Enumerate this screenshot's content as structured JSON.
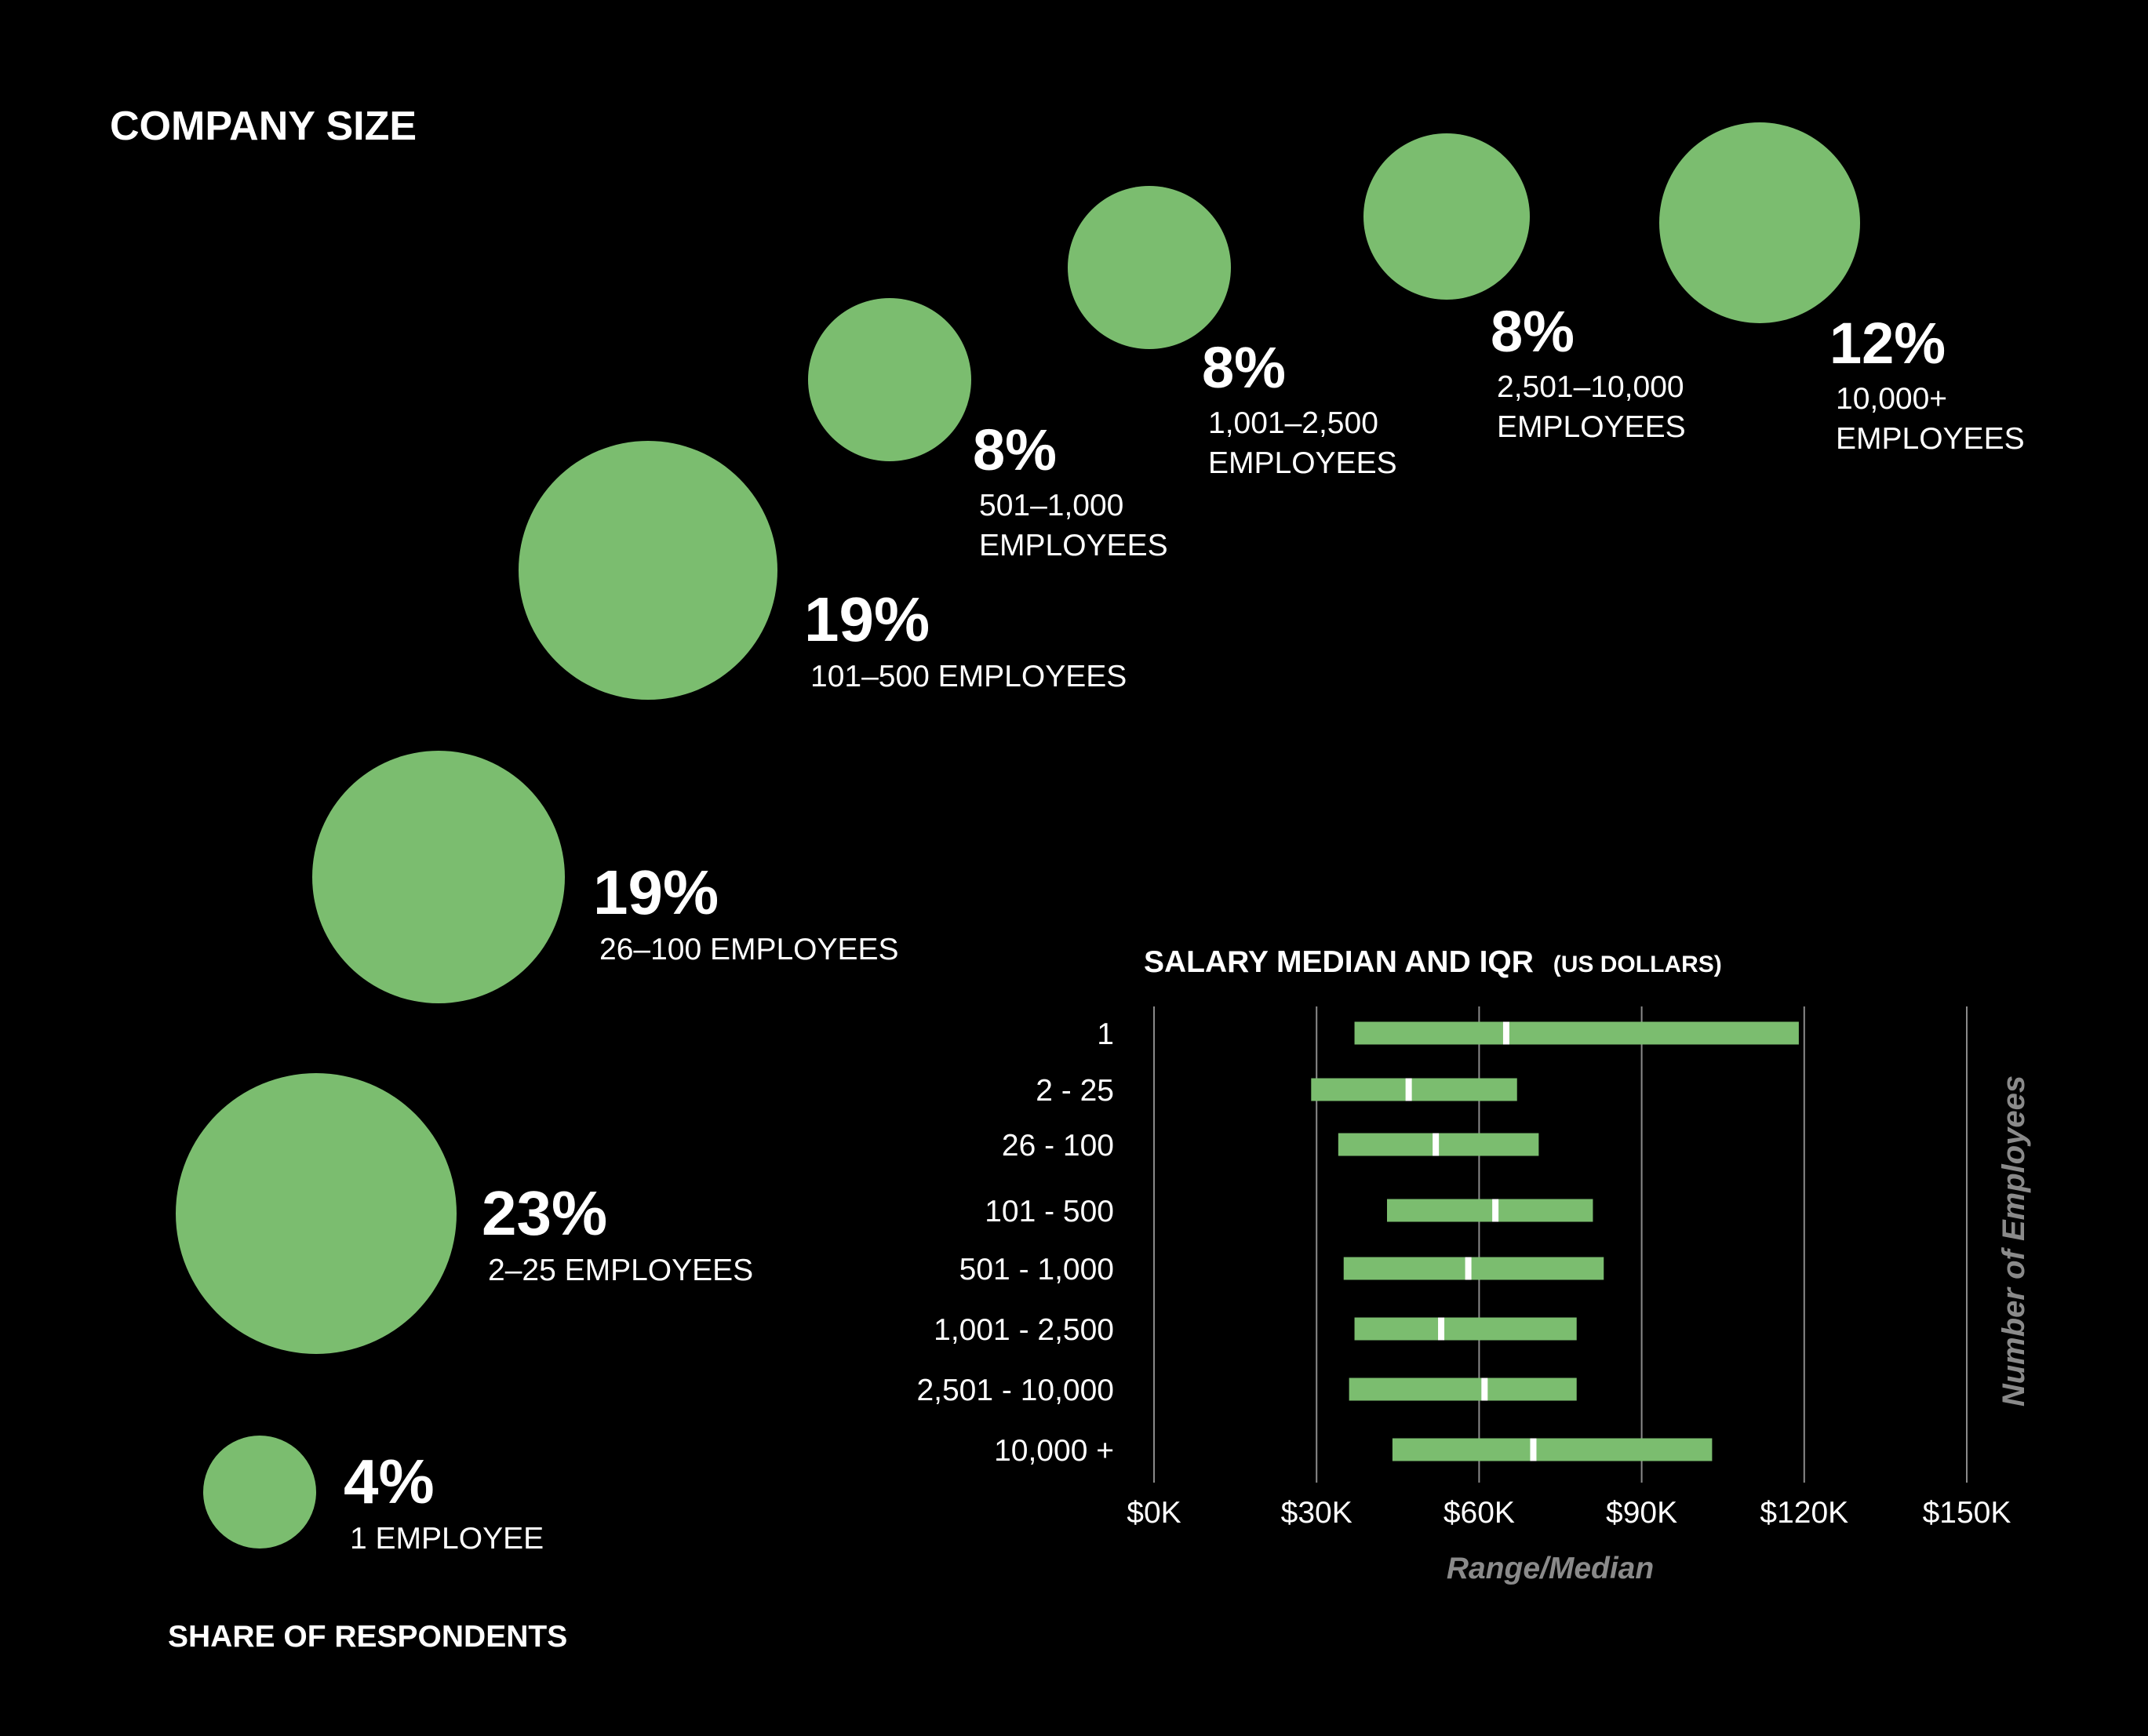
{
  "colors": {
    "background": "#000000",
    "accent": "#7bbd6f",
    "text": "#ffffff",
    "grid": "#8a8a8a",
    "axis_title": "#8a8a8a",
    "median_marker": "#ffffff"
  },
  "chart_data": [
    {
      "type": "bubble",
      "title": "COMPANY SIZE",
      "footer": "SHARE OF RESPONDENTS",
      "items": [
        {
          "label": [
            "1 EMPLOYEE"
          ],
          "pct_label": "4%",
          "value": 4
        },
        {
          "label": [
            "2–25 EMPLOYEES"
          ],
          "pct_label": "23%",
          "value": 23
        },
        {
          "label": [
            "26–100 EMPLOYEES"
          ],
          "pct_label": "19%",
          "value": 19
        },
        {
          "label": [
            "101–500 EMPLOYEES"
          ],
          "pct_label": "19%",
          "value": 19
        },
        {
          "label": [
            "501–1,000",
            "EMPLOYEES"
          ],
          "pct_label": "8%",
          "value": 8
        },
        {
          "label": [
            "1,001–2,500",
            "EMPLOYEES"
          ],
          "pct_label": "8%",
          "value": 8
        },
        {
          "label": [
            "2,501–10,000",
            "EMPLOYEES"
          ],
          "pct_label": "8%",
          "value": 8
        },
        {
          "label": [
            "10,000+",
            "EMPLOYEES"
          ],
          "pct_label": "12%",
          "value": 12
        }
      ]
    },
    {
      "type": "range-bar",
      "title": "SALARY MEDIAN AND IQR",
      "title_suffix": "(US DOLLARS)",
      "xlabel": "Range/Median",
      "ylabel": "Number of Employees",
      "xlim": [
        0,
        150
      ],
      "x_unit": "thousands USD",
      "xticks": [
        0,
        30,
        60,
        90,
        120,
        150
      ],
      "xtick_labels": [
        "$0K",
        "$30K",
        "$60K",
        "$90K",
        "$120K",
        "$150K"
      ],
      "grid": true,
      "categories": [
        "1",
        "2 - 25",
        "26 - 100",
        "101 - 500",
        "501 - 1,000",
        "1,001 - 2,500",
        "2,501 - 10,000",
        "10,000 +"
      ],
      "q1": [
        37,
        29,
        34,
        43,
        35,
        37,
        36,
        44
      ],
      "median": [
        65,
        47,
        52,
        63,
        58,
        53,
        61,
        70
      ],
      "q3": [
        119,
        67,
        71,
        81,
        83,
        78,
        78,
        103
      ]
    }
  ]
}
